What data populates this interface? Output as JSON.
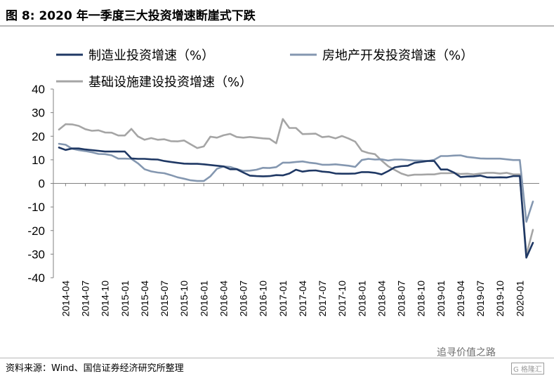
{
  "header": {
    "title": "图 8:  2020 年一季度三大投资增速断崖式下跌"
  },
  "footer": {
    "source": "资料来源：Wind、国信证券经济研究所整理"
  },
  "watermark": {
    "text": "追寻价值之路",
    "badge": "G 格隆汇"
  },
  "chart_data": {
    "type": "line",
    "ylim": [
      -40,
      40
    ],
    "yticks": [
      "40",
      "30",
      "20",
      "10",
      "0",
      "-10",
      "-20",
      "-30",
      "-40"
    ],
    "xticks": [
      "2014-04",
      "2014-07",
      "2014-10",
      "2015-01",
      "2015-04",
      "2015-07",
      "2015-10",
      "2016-01",
      "2016-04",
      "2016-07",
      "2016-10",
      "2017-01",
      "2017-04",
      "2017-07",
      "2017-10",
      "2018-01",
      "2018-04",
      "2018-07",
      "2018-10",
      "2019-01",
      "2019-04",
      "2019-07",
      "2019-10",
      "2020-01"
    ],
    "x": [
      "2014-03",
      "2014-04",
      "2014-05",
      "2014-06",
      "2014-07",
      "2014-08",
      "2014-09",
      "2014-10",
      "2014-11",
      "2014-12",
      "2015-01",
      "2015-02",
      "2015-03",
      "2015-04",
      "2015-05",
      "2015-06",
      "2015-07",
      "2015-08",
      "2015-09",
      "2015-10",
      "2015-11",
      "2015-12",
      "2016-01",
      "2016-02",
      "2016-03",
      "2016-04",
      "2016-05",
      "2016-06",
      "2016-07",
      "2016-08",
      "2016-09",
      "2016-10",
      "2016-11",
      "2016-12",
      "2017-01",
      "2017-02",
      "2017-03",
      "2017-04",
      "2017-05",
      "2017-06",
      "2017-07",
      "2017-08",
      "2017-09",
      "2017-10",
      "2017-11",
      "2017-12",
      "2018-01",
      "2018-02",
      "2018-03",
      "2018-04",
      "2018-05",
      "2018-06",
      "2018-07",
      "2018-08",
      "2018-09",
      "2018-10",
      "2018-11",
      "2018-12",
      "2019-01",
      "2019-02",
      "2019-03",
      "2019-04",
      "2019-05",
      "2019-06",
      "2019-07",
      "2019-08",
      "2019-09",
      "2019-10",
      "2019-11",
      "2019-12",
      "2020-01",
      "2020-02",
      "2020-03"
    ],
    "series": [
      {
        "name": "制造业投资增速（%）",
        "color": "#1f3864",
        "values": [
          15.2,
          14.2,
          14.8,
          14.8,
          14.4,
          14.1,
          13.8,
          13.5,
          13.5,
          13.5,
          13.5,
          10.6,
          10.4,
          10.4,
          10.2,
          10.1,
          9.5,
          9.1,
          8.7,
          8.4,
          8.3,
          8.3,
          8.1,
          7.8,
          7.5,
          7.2,
          6.0,
          6.0,
          4.6,
          3.3,
          3.1,
          3.0,
          3.1,
          3.5,
          3.4,
          4.2,
          5.8,
          5.0,
          5.4,
          5.5,
          5.0,
          4.8,
          4.2,
          4.1,
          4.1,
          4.2,
          4.8,
          4.8,
          4.5,
          3.8,
          5.2,
          6.8,
          7.3,
          7.5,
          8.7,
          9.1,
          9.5,
          9.5,
          5.9,
          5.9,
          4.6,
          2.7,
          2.9,
          3.0,
          3.3,
          2.6,
          2.5,
          2.6,
          2.5,
          3.1,
          3.1,
          -31.5,
          -25.2
        ]
      },
      {
        "name": "房地产开发投资增速（%）",
        "color": "#8497b0",
        "values": [
          16.8,
          16.4,
          14.7,
          14.1,
          13.7,
          13.2,
          12.5,
          12.4,
          11.9,
          10.5,
          10.5,
          10.4,
          8.5,
          6.0,
          5.1,
          4.6,
          4.3,
          3.5,
          2.6,
          2.0,
          1.3,
          1.0,
          1.0,
          3.0,
          6.2,
          7.2,
          7.0,
          6.1,
          5.3,
          5.4,
          5.8,
          6.6,
          6.5,
          6.9,
          8.8,
          8.8,
          9.1,
          9.3,
          8.8,
          8.5,
          7.9,
          7.9,
          8.1,
          7.8,
          7.5,
          7.0,
          9.9,
          10.4,
          10.1,
          10.2,
          9.7,
          10.1,
          10.1,
          9.9,
          9.7,
          9.7,
          9.5,
          10.0,
          11.6,
          11.6,
          11.8,
          11.9,
          11.2,
          10.9,
          10.6,
          10.5,
          10.5,
          10.5,
          10.2,
          9.9,
          9.9,
          -16.3,
          -7.7
        ]
      },
      {
        "name": "基础设施建设投资增速（%）",
        "color": "#a5a5a5",
        "values": [
          22.8,
          25.1,
          25.0,
          24.4,
          23.0,
          22.3,
          22.5,
          21.6,
          21.5,
          20.3,
          20.3,
          23.1,
          19.9,
          18.5,
          19.2,
          18.5,
          18.7,
          17.9,
          17.8,
          18.2,
          16.6,
          15.0,
          15.7,
          19.8,
          19.4,
          20.4,
          21.0,
          19.7,
          19.4,
          19.7,
          19.4,
          19.1,
          18.9,
          17.0,
          27.3,
          23.5,
          23.5,
          20.9,
          21.0,
          21.1,
          19.6,
          19.9,
          19.1,
          20.1,
          19.0,
          17.7,
          13.8,
          12.9,
          12.4,
          9.7,
          7.3,
          5.7,
          4.2,
          3.3,
          3.7,
          3.7,
          3.8,
          3.8,
          4.3,
          4.3,
          4.4,
          4.0,
          4.1,
          3.8,
          4.2,
          4.5,
          4.5,
          4.2,
          4.5,
          3.8,
          3.8,
          -30.3,
          -19.7
        ]
      }
    ],
    "legend_position": "top",
    "grid": false
  }
}
